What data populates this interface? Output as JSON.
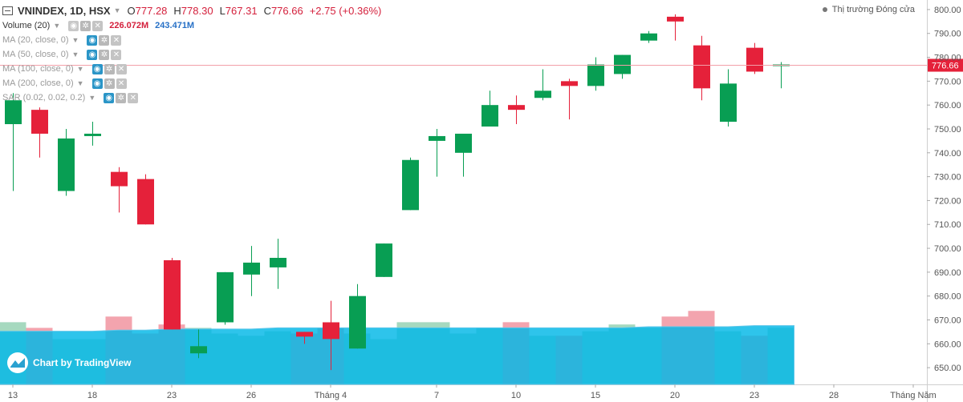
{
  "header": {
    "symbol": "VNINDEX, 1D, HSX",
    "open_label": "O",
    "open": "777.28",
    "high_label": "H",
    "high": "778.30",
    "low_label": "L",
    "low": "767.31",
    "close_label": "C",
    "close": "776.66",
    "change": "+2.75 (+0.36%)"
  },
  "volume_legend": {
    "label": "Volume (20)",
    "value1": "226.072M",
    "value2": "243.471M"
  },
  "studies": [
    {
      "label": "MA (20, close, 0)"
    },
    {
      "label": "MA (50, close, 0)"
    },
    {
      "label": "MA (100, close, 0)"
    },
    {
      "label": "MA (200, close, 0)"
    },
    {
      "label": "SAR (0.02, 0.02, 0.2)"
    }
  ],
  "market_status": "Thị trường Đóng cửa",
  "logo_text": "Chart by TradingView",
  "colors": {
    "up": "#089e53",
    "down": "#e5213a",
    "vol_up": "#a6d9bf",
    "vol_down": "#f3a4ae",
    "vol_ma": "#00b7e6",
    "price_line": "#f2a0a9"
  },
  "chart_data": {
    "type": "candlestick",
    "title": "VNINDEX, 1D, HSX",
    "ylim": [
      643,
      804
    ],
    "y_ticks": [
      "800.00",
      "790.00",
      "780.00",
      "770.00",
      "760.00",
      "750.00",
      "740.00",
      "730.00",
      "720.00",
      "710.00",
      "700.00",
      "690.00",
      "680.00",
      "670.00",
      "660.00",
      "650.00"
    ],
    "x_ticks": [
      "13",
      "18",
      "23",
      "26",
      "Tháng 4",
      "7",
      "10",
      "15",
      "20",
      "23",
      "28",
      "Tháng Năm"
    ],
    "last_price": "776.66",
    "candles": [
      {
        "o": 752,
        "h": 765,
        "l": 724,
        "c": 762
      },
      {
        "o": 758,
        "h": 759,
        "l": 738,
        "c": 748
      },
      {
        "o": 724,
        "h": 750,
        "l": 722,
        "c": 746
      },
      {
        "o": 747,
        "h": 753,
        "l": 743,
        "c": 748
      },
      {
        "o": 732,
        "h": 734,
        "l": 715,
        "c": 726
      },
      {
        "o": 729,
        "h": 731,
        "l": 710,
        "c": 710
      },
      {
        "o": 695,
        "h": 696,
        "l": 666,
        "c": 666
      },
      {
        "o": 656,
        "h": 666,
        "l": 654,
        "c": 659
      },
      {
        "o": 669,
        "h": 690,
        "l": 668,
        "c": 690
      },
      {
        "o": 689,
        "h": 701,
        "l": 680,
        "c": 694
      },
      {
        "o": 692,
        "h": 704,
        "l": 683,
        "c": 696
      },
      {
        "o": 665,
        "h": 665,
        "l": 660,
        "c": 663
      },
      {
        "o": 669,
        "h": 678,
        "l": 649,
        "c": 662
      },
      {
        "o": 658,
        "h": 685,
        "l": 658,
        "c": 680
      },
      {
        "o": 688,
        "h": 702,
        "l": 688,
        "c": 702
      },
      {
        "o": 716,
        "h": 738,
        "l": 716,
        "c": 737
      },
      {
        "o": 745,
        "h": 750,
        "l": 730,
        "c": 747
      },
      {
        "o": 740,
        "h": 748,
        "l": 730,
        "c": 748
      },
      {
        "o": 751,
        "h": 766,
        "l": 751,
        "c": 760
      },
      {
        "o": 760,
        "h": 764,
        "l": 752,
        "c": 758
      },
      {
        "o": 763,
        "h": 775,
        "l": 762,
        "c": 766
      },
      {
        "o": 770,
        "h": 771,
        "l": 754,
        "c": 768
      },
      {
        "o": 768,
        "h": 780,
        "l": 766,
        "c": 777
      },
      {
        "o": 773,
        "h": 781,
        "l": 771,
        "c": 781
      },
      {
        "o": 787,
        "h": 791,
        "l": 786,
        "c": 790
      },
      {
        "o": 797,
        "h": 798,
        "l": 787,
        "c": 795
      },
      {
        "o": 785,
        "h": 789,
        "l": 762,
        "c": 767
      },
      {
        "o": 753,
        "h": 775,
        "l": 751,
        "c": 769
      },
      {
        "o": 784,
        "h": 786,
        "l": 773,
        "c": 774
      },
      {
        "o": 777,
        "h": 778,
        "l": 767,
        "c": 777
      }
    ],
    "volumes": [
      270,
      265,
      255,
      255,
      275,
      260,
      268,
      265,
      260,
      258,
      262,
      260,
      265,
      260,
      255,
      270,
      270,
      260,
      265,
      270,
      258,
      258,
      262,
      268,
      265,
      275,
      280,
      262,
      258,
      265
    ],
    "volume_ma": [
      262,
      262,
      262,
      262,
      263,
      263,
      264,
      264,
      264,
      264,
      265,
      265,
      265,
      265,
      265,
      265,
      265,
      265,
      265,
      265,
      265,
      265,
      265,
      265,
      266,
      266,
      266,
      266,
      267,
      267
    ],
    "volume_ylim": [
      215,
      300
    ]
  }
}
